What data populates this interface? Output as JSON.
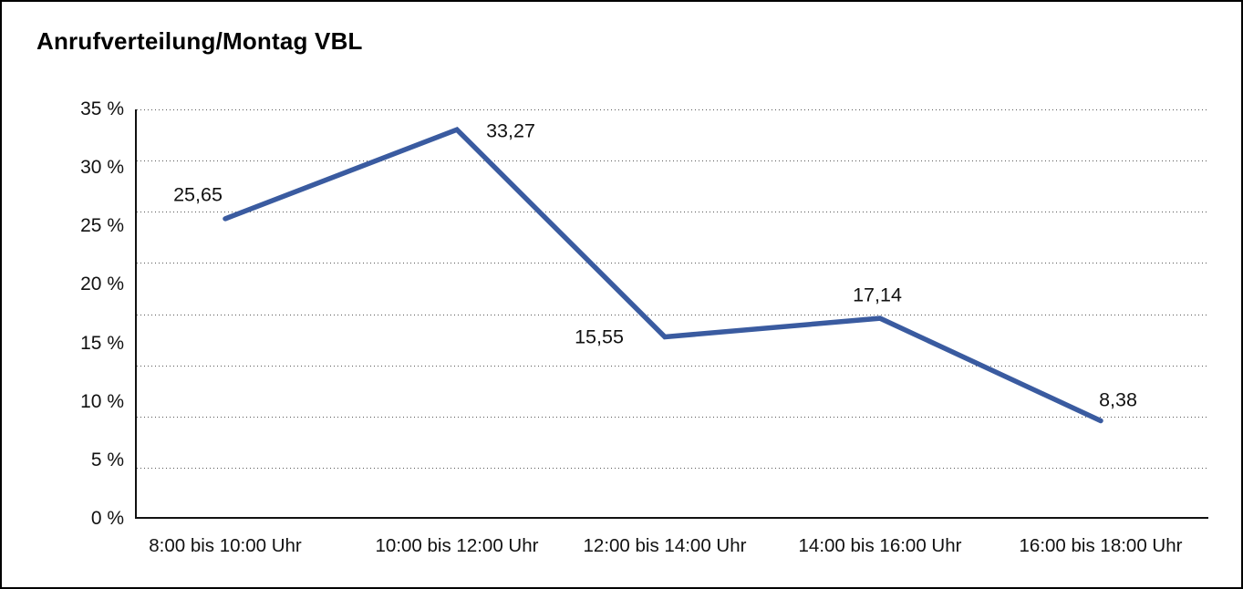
{
  "chart_data": {
    "type": "line",
    "title": "Anrufverteilung/Montag VBL",
    "categories": [
      "8:00 bis 10:00 Uhr",
      "10:00 bis 12:00 Uhr",
      "12:00 bis 14:00 Uhr",
      "14:00 bis 16:00 Uhr",
      "16:00 bis 18:00 Uhr"
    ],
    "values": [
      25.65,
      33.27,
      15.55,
      17.14,
      8.38
    ],
    "value_labels": [
      "25,65",
      "33,27",
      "15,55",
      "17,14",
      "8,38"
    ],
    "y_ticks": [
      "35 %",
      "30 %",
      "25 %",
      "20 %",
      "15 %",
      "10 %",
      "5 %",
      "0 %"
    ],
    "xlabel": "",
    "ylabel": "",
    "ylim": [
      0,
      35
    ],
    "grid": "horizontal-dotted",
    "gridline_intervals": 8,
    "legend_position": "none",
    "line_color": "#3A5BA0",
    "text_color": "#111111",
    "background_color": "#FFFFFF"
  }
}
